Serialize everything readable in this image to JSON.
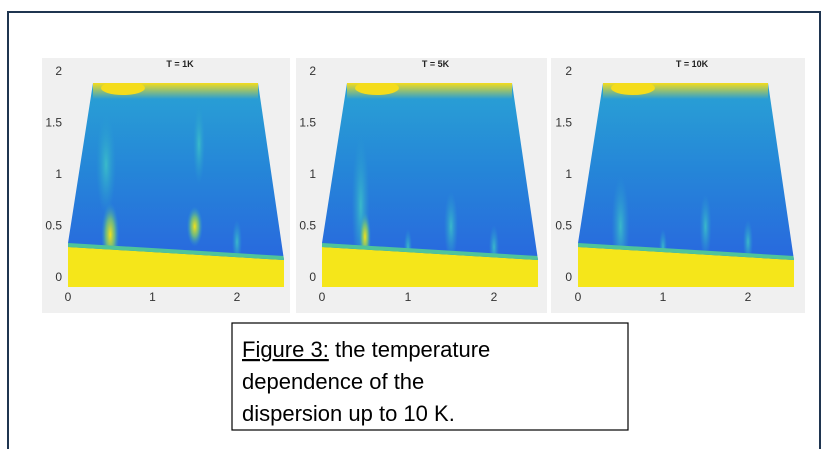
{
  "panels": [
    {
      "title": "T = 1K",
      "xticks": [
        0,
        1,
        2
      ],
      "yticks": [
        0,
        0.5,
        1,
        1.5,
        2
      ]
    },
    {
      "title": "T = 5K",
      "xticks": [
        0,
        1,
        2
      ],
      "yticks": [
        0,
        0.5,
        1,
        1.5,
        2
      ]
    },
    {
      "title": "T = 10K",
      "xticks": [
        0,
        1,
        2
      ],
      "yticks": [
        0,
        0.5,
        1,
        1.5,
        2
      ]
    }
  ],
  "caption": {
    "label": "Figure 3:",
    "lines": [
      "the temperature",
      "dependence of the",
      "dispersion up to 10 K."
    ]
  }
}
